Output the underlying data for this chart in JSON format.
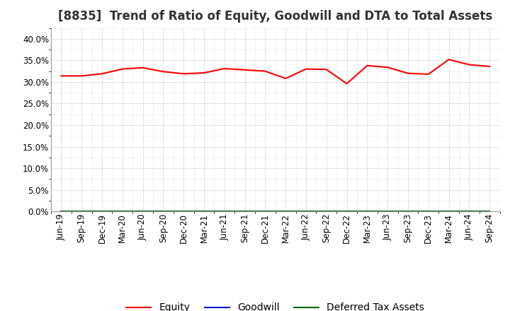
{
  "title": "[8835]  Trend of Ratio of Equity, Goodwill and DTA to Total Assets",
  "labels": [
    "Jun-19",
    "Sep-19",
    "Dec-19",
    "Mar-20",
    "Jun-20",
    "Sep-20",
    "Dec-20",
    "Mar-21",
    "Jun-21",
    "Sep-21",
    "Dec-21",
    "Mar-22",
    "Jun-22",
    "Sep-22",
    "Dec-22",
    "Mar-23",
    "Jun-23",
    "Sep-23",
    "Dec-23",
    "Mar-24",
    "Jun-24",
    "Sep-24"
  ],
  "equity": [
    0.314,
    0.314,
    0.319,
    0.33,
    0.333,
    0.324,
    0.319,
    0.321,
    0.331,
    0.328,
    0.325,
    0.308,
    0.33,
    0.329,
    0.296,
    0.338,
    0.334,
    0.32,
    0.318,
    0.352,
    0.34,
    0.336
  ],
  "goodwill": [
    0.0,
    0.0,
    0.0,
    0.0,
    0.0,
    0.0,
    0.0,
    0.0,
    0.0,
    0.0,
    0.0,
    0.0,
    0.0,
    0.0,
    0.0,
    0.0,
    0.0,
    0.0,
    0.0,
    0.0,
    0.0,
    0.0
  ],
  "dta": [
    0.0,
    0.0,
    0.0,
    0.0,
    0.0,
    0.0,
    0.0,
    0.0,
    0.0,
    0.0,
    0.0,
    0.0,
    0.0,
    0.0,
    0.0,
    0.0,
    0.0,
    0.0,
    0.0,
    0.0,
    0.0,
    0.0
  ],
  "equity_color": "#ff0000",
  "goodwill_color": "#0000cc",
  "dta_color": "#006600",
  "ylim": [
    0.0,
    0.425
  ],
  "yticks": [
    0.0,
    0.05,
    0.1,
    0.15,
    0.2,
    0.25,
    0.3,
    0.35,
    0.4
  ],
  "bg_color": "#ffffff",
  "plot_bg_color": "#ffffff",
  "grid_color": "#999999",
  "title_fontsize": 12,
  "tick_fontsize": 8.5,
  "legend_fontsize": 10
}
